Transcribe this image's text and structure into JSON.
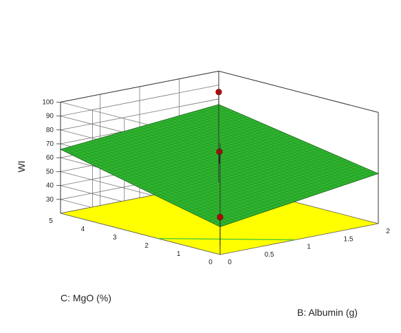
{
  "chart_data": {
    "type": "surface3d",
    "zlabel": "WI",
    "xlabel": "B: Albumin (g)",
    "ylabel": "C: MgO (%)",
    "x_ticks": [
      "0",
      "0.5",
      "1",
      "1.5",
      "2"
    ],
    "y_ticks": [
      "0",
      "1",
      "2",
      "3",
      "4",
      "5"
    ],
    "z_ticks": [
      "30",
      "40",
      "50",
      "60",
      "70",
      "80",
      "90",
      "100"
    ],
    "xlim": [
      0,
      2
    ],
    "ylim": [
      0,
      5
    ],
    "zlim": [
      20,
      100
    ],
    "surface_corners": {
      "albumin_0_mgo_0": 40,
      "albumin_2_mgo_0": 56,
      "albumin_2_mgo_5": 76,
      "albumin_0_mgo_5": 66
    },
    "points": [
      {
        "albumin": 2,
        "mgo": 5,
        "wi": 85
      },
      {
        "albumin": 1,
        "mgo": 2.5,
        "wi": 68
      },
      {
        "albumin": 0,
        "mgo": 0,
        "wi": 47
      }
    ],
    "colors": {
      "surface": "#2fb52f",
      "surface_mesh": "#1d7d1d",
      "floor": "#ffff00",
      "point": "#cc0000",
      "contour": "#3cc83c"
    }
  }
}
